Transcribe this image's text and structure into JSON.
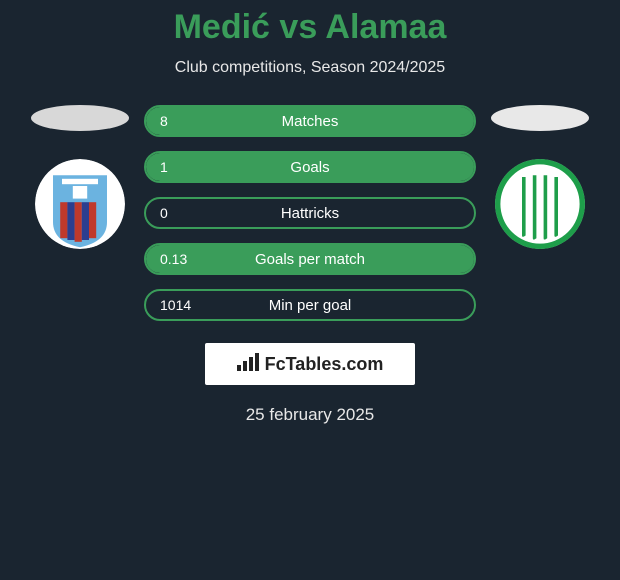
{
  "title": "Medić vs Alamaa",
  "subtitle": "Club competitions, Season 2024/2025",
  "date": "25 february 2025",
  "colors": {
    "accent": "#3a9d5a",
    "background": "#1a2530",
    "text_light": "#e8e8e8",
    "bar_border": "#3a9d5a"
  },
  "left_club": {
    "name": "Paide Linnameeskond",
    "logo_colors": {
      "top": "#6bb3e0",
      "stripe1": "#c0392b",
      "stripe2": "#2c3e8f"
    }
  },
  "right_club": {
    "name": "FC Flora",
    "logo_colors": {
      "ring": "#1e9e4a",
      "stripe": "#1e9e4a"
    }
  },
  "stats": [
    {
      "value": "8",
      "label": "Matches",
      "fill_pct": 100
    },
    {
      "value": "1",
      "label": "Goals",
      "fill_pct": 100
    },
    {
      "value": "0",
      "label": "Hattricks",
      "fill_pct": 0
    },
    {
      "value": "0.13",
      "label": "Goals per match",
      "fill_pct": 100
    },
    {
      "value": "1014",
      "label": "Min per goal",
      "fill_pct": 0
    }
  ],
  "footer_brand": "FcTables.com"
}
